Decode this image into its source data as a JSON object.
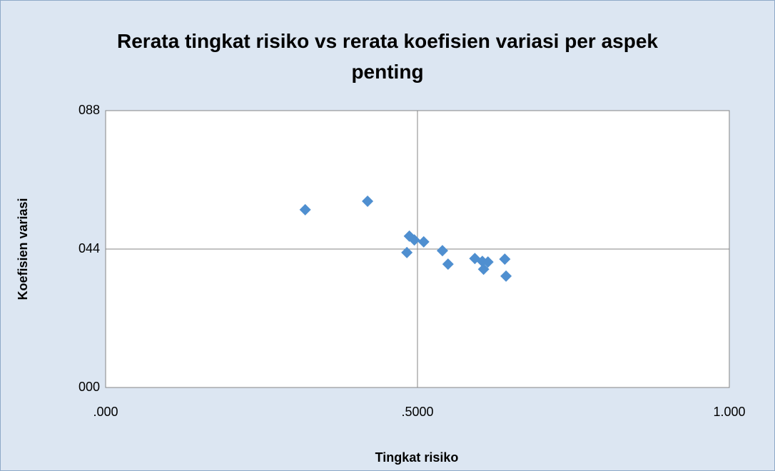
{
  "chart_data": {
    "type": "scatter",
    "title": "Rerata tingkat risiko vs rerata koefisien variasi per aspek penting",
    "x_label": "Tingkat risiko",
    "y_label": "Koefisien variasi",
    "x": [
      0.32,
      0.42,
      0.487,
      0.495,
      0.51,
      0.483,
      0.54,
      0.549,
      0.592,
      0.604,
      0.613,
      0.606,
      0.64,
      0.642
    ],
    "values": [
      0.565,
      0.592,
      0.481,
      0.469,
      0.463,
      0.429,
      0.435,
      0.392,
      0.41,
      0.401,
      0.399,
      0.376,
      0.408,
      0.354
    ],
    "color": "#4f8fd0",
    "xlim": [
      0,
      1
    ],
    "ylim": [
      0,
      0.88
    ],
    "xticks": [
      {
        "value": 0,
        "label": ".000"
      },
      {
        "value": 0.5,
        "label": ".5000"
      },
      {
        "value": 1,
        "label": "1.000"
      }
    ],
    "yticks": [
      {
        "value": 0,
        "label": "000"
      },
      {
        "value": 0.44,
        "label": "044"
      },
      {
        "value": 0.88,
        "label": "088"
      }
    ],
    "grid": true
  }
}
